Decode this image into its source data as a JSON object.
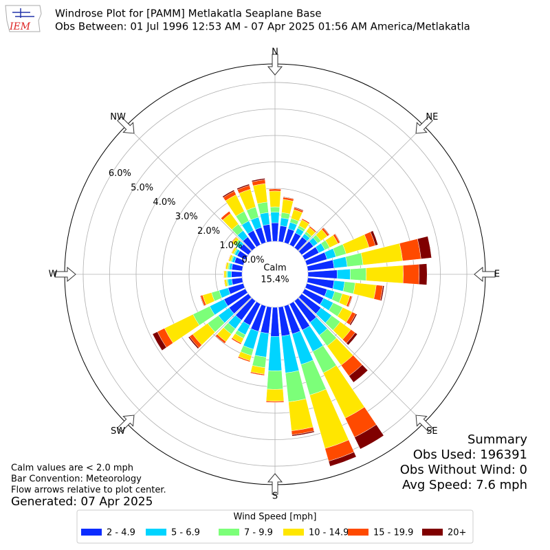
{
  "chart_data": {
    "type": "windrose",
    "title": "Windrose Plot for [PAMM] Metlakatla Seaplane Base",
    "subtitle": "Obs Between: 01 Jul 1996 12:53 AM - 07 Apr 2025 01:56 AM America/Metlakatla",
    "logo_text": "IEM",
    "compass_labels": [
      "N",
      "NE",
      "E",
      "SE",
      "S",
      "SW",
      "W",
      "NW"
    ],
    "x": [
      0,
      10,
      20,
      30,
      40,
      50,
      60,
      70,
      80,
      90,
      100,
      110,
      120,
      130,
      140,
      150,
      160,
      170,
      180,
      190,
      200,
      210,
      220,
      230,
      240,
      250,
      260,
      270,
      280,
      290,
      300,
      310,
      320,
      330,
      340,
      350
    ],
    "rlim": [
      0,
      6.7
    ],
    "rticks": [
      {
        "value": 0,
        "label": "0.0%"
      },
      {
        "value": 1,
        "label": "1.0%"
      },
      {
        "value": 2,
        "label": "2.0%"
      },
      {
        "value": 3,
        "label": "3.0%"
      },
      {
        "value": 4,
        "label": "4.0%"
      },
      {
        "value": 5,
        "label": "5.0%"
      },
      {
        "value": 6,
        "label": "6.0%"
      }
    ],
    "grid": true,
    "calm_label": "Calm",
    "calm": 15.4,
    "calm_value_label": "15.4%",
    "legend_title": "Wind Speed [mph]",
    "series": [
      {
        "name": "2 - 4.9",
        "color": "#0c2cff",
        "values": [
          0.7,
          0.6,
          0.55,
          0.5,
          0.5,
          0.55,
          0.6,
          0.8,
          1.0,
          1.1,
          1.0,
          0.8,
          0.8,
          0.9,
          1.0,
          1.1,
          1.1,
          1.1,
          1.1,
          1.0,
          1.0,
          0.9,
          0.9,
          0.9,
          0.9,
          0.6,
          0.4,
          0.4,
          0.4,
          0.35,
          0.35,
          0.4,
          0.5,
          0.6,
          0.6,
          0.65
        ]
      },
      {
        "name": "5 - 6.9",
        "color": "#00d4ff",
        "values": [
          0.4,
          0.3,
          0.25,
          0.2,
          0.15,
          0.2,
          0.25,
          0.35,
          0.5,
          0.5,
          0.4,
          0.3,
          0.4,
          0.5,
          0.6,
          0.9,
          1.2,
          1.4,
          1.3,
          0.9,
          0.7,
          0.4,
          0.4,
          0.5,
          0.6,
          0.35,
          0.15,
          0.15,
          0.1,
          0.1,
          0.1,
          0.15,
          0.3,
          0.4,
          0.4,
          0.45
        ]
      },
      {
        "name": "7 - 9.9",
        "color": "#7cff79",
        "values": [
          0.2,
          0.2,
          0.15,
          0.1,
          0.1,
          0.15,
          0.2,
          0.4,
          0.6,
          0.6,
          0.4,
          0.3,
          0.4,
          0.4,
          0.5,
          0.9,
          1.2,
          1.1,
          0.7,
          0.4,
          0.25,
          0.15,
          0.25,
          0.5,
          0.7,
          0.3,
          0.05,
          0.05,
          0.05,
          0.05,
          0.05,
          0.1,
          0.3,
          0.4,
          0.4,
          0.4
        ]
      },
      {
        "name": "10 - 14.9",
        "color": "#ffe600",
        "values": [
          0.6,
          0.5,
          0.35,
          0.25,
          0.2,
          0.3,
          0.35,
          0.9,
          1.5,
          1.4,
          0.8,
          0.3,
          0.4,
          0.5,
          0.9,
          1.9,
          2.1,
          1.1,
          0.45,
          0.25,
          0.2,
          0.2,
          0.35,
          0.7,
          1.2,
          0.35,
          0.08,
          0.08,
          0.08,
          0.08,
          0.08,
          0.12,
          0.5,
          0.7,
          0.7,
          0.7
        ]
      },
      {
        "name": "15 - 19.9",
        "color": "#ff4a00",
        "values": [
          0.08,
          0.08,
          0.07,
          0.05,
          0.05,
          0.08,
          0.08,
          0.25,
          0.7,
          0.6,
          0.25,
          0.08,
          0.15,
          0.2,
          0.5,
          0.8,
          0.5,
          0.15,
          0.05,
          0.05,
          0.05,
          0.05,
          0.08,
          0.15,
          0.3,
          0.08,
          0.02,
          0.02,
          0.02,
          0.02,
          0.02,
          0.03,
          0.1,
          0.15,
          0.15,
          0.15
        ]
      },
      {
        "name": "20+",
        "color": "#800000",
        "values": [
          0.02,
          0.02,
          0.03,
          0,
          0,
          0.02,
          0.02,
          0.1,
          0.4,
          0.3,
          0.05,
          0.02,
          0.05,
          0.1,
          0.3,
          0.5,
          0.2,
          0.05,
          0,
          0,
          0,
          0,
          0.02,
          0.05,
          0.2,
          0.02,
          0,
          0,
          0,
          0,
          0,
          0,
          0,
          0.05,
          0.05,
          0.05
        ]
      }
    ],
    "summary": [
      "Summary",
      "Obs Used: 196391",
      "Obs Without Wind: 0",
      "Avg Speed: 7.6 mph"
    ],
    "notes": [
      "Calm values are < 2.0 mph",
      "Bar Convention: Meteorology",
      "Flow arrows relative to plot center."
    ],
    "generated": "Generated: 07 Apr 2025"
  }
}
